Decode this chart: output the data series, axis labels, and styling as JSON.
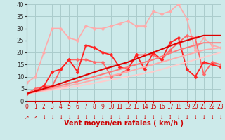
{
  "bg_color": "#cceaea",
  "grid_color": "#aacccc",
  "xlabel": "Vent moyen/en rafales ( km/h )",
  "xlim": [
    0,
    23
  ],
  "ylim": [
    0,
    40
  ],
  "xticks": [
    0,
    1,
    2,
    3,
    4,
    5,
    6,
    7,
    8,
    9,
    10,
    11,
    12,
    13,
    14,
    15,
    16,
    17,
    18,
    19,
    20,
    21,
    22,
    23
  ],
  "yticks": [
    0,
    5,
    10,
    15,
    20,
    25,
    30,
    35,
    40
  ],
  "series": [
    {
      "x": [
        0,
        1,
        2,
        3,
        4,
        5,
        6,
        7,
        8,
        9,
        10,
        11,
        12,
        13,
        14,
        15,
        16,
        17,
        18,
        19,
        20,
        21,
        22,
        23
      ],
      "y": [
        7.5,
        10,
        20,
        30,
        30,
        26,
        25,
        31,
        30,
        30,
        31,
        32,
        33,
        31,
        31,
        37,
        36,
        37,
        40,
        34,
        21,
        26,
        23,
        22
      ],
      "color": "#ffaaaa",
      "lw": 1.2,
      "marker": "D",
      "ms": 2.5
    },
    {
      "x": [
        0,
        1,
        2,
        3,
        4,
        5,
        6,
        7,
        8,
        9,
        10,
        11,
        12,
        13,
        14,
        15,
        16,
        17,
        18,
        19,
        20,
        21,
        22,
        23
      ],
      "y": [
        3,
        5,
        6,
        6,
        13,
        17,
        17,
        17,
        16,
        16,
        10,
        11,
        13,
        19,
        19,
        19,
        17,
        21,
        24,
        27,
        26,
        11,
        16,
        15
      ],
      "color": "#ff6666",
      "lw": 1.3,
      "marker": "D",
      "ms": 2.5
    },
    {
      "x": [
        0,
        1,
        2,
        3,
        4,
        5,
        6,
        7,
        8,
        9,
        10,
        11,
        12,
        13,
        14,
        15,
        16,
        17,
        18,
        19,
        20,
        21,
        22,
        23
      ],
      "y": [
        3,
        4,
        6,
        12,
        13,
        17,
        12,
        23,
        22,
        20,
        19,
        14,
        13,
        19,
        13,
        20,
        17,
        24,
        26,
        13,
        10,
        16,
        15,
        14
      ],
      "color": "#ff2222",
      "lw": 1.3,
      "marker": "D",
      "ms": 2.5
    },
    {
      "x": [
        0,
        3,
        6,
        9,
        12,
        15,
        18,
        21,
        23
      ],
      "y": [
        3,
        4.5,
        6,
        8,
        10,
        12,
        15,
        18,
        20
      ],
      "color": "#ffcccc",
      "lw": 1.4,
      "marker": "",
      "ms": 0
    },
    {
      "x": [
        0,
        3,
        6,
        9,
        12,
        15,
        18,
        21,
        23
      ],
      "y": [
        3,
        5,
        7,
        9.5,
        12,
        15,
        18,
        21,
        22
      ],
      "color": "#ffaaaa",
      "lw": 1.4,
      "marker": "",
      "ms": 0
    },
    {
      "x": [
        0,
        3,
        6,
        9,
        12,
        15,
        18,
        21,
        23
      ],
      "y": [
        3,
        5.5,
        8,
        11,
        14,
        17,
        21,
        24,
        24
      ],
      "color": "#ff7777",
      "lw": 1.4,
      "marker": "",
      "ms": 0
    },
    {
      "x": [
        0,
        3,
        6,
        9,
        12,
        15,
        18,
        21,
        23
      ],
      "y": [
        3,
        6,
        9.5,
        13,
        16,
        20,
        24,
        27,
        27
      ],
      "color": "#dd0000",
      "lw": 1.5,
      "marker": "",
      "ms": 0
    }
  ],
  "arrows": [
    [
      0,
      "↗"
    ],
    [
      1,
      "↗"
    ],
    [
      2,
      "↓"
    ],
    [
      3,
      "↓"
    ],
    [
      4,
      "↓"
    ],
    [
      5,
      "↓"
    ],
    [
      6,
      "↓"
    ],
    [
      7,
      "↓"
    ],
    [
      8,
      "↓"
    ],
    [
      9,
      "↓"
    ],
    [
      10,
      "↓"
    ],
    [
      11,
      "↓"
    ],
    [
      12,
      "↓"
    ],
    [
      13,
      "↓"
    ],
    [
      14,
      "↓"
    ],
    [
      15,
      "↓"
    ],
    [
      16,
      "↓"
    ],
    [
      17,
      "↕"
    ],
    [
      18,
      "↓"
    ],
    [
      19,
      "↓"
    ],
    [
      20,
      "↓"
    ],
    [
      21,
      "↓"
    ],
    [
      22,
      "↓"
    ],
    [
      23,
      "↓"
    ]
  ]
}
